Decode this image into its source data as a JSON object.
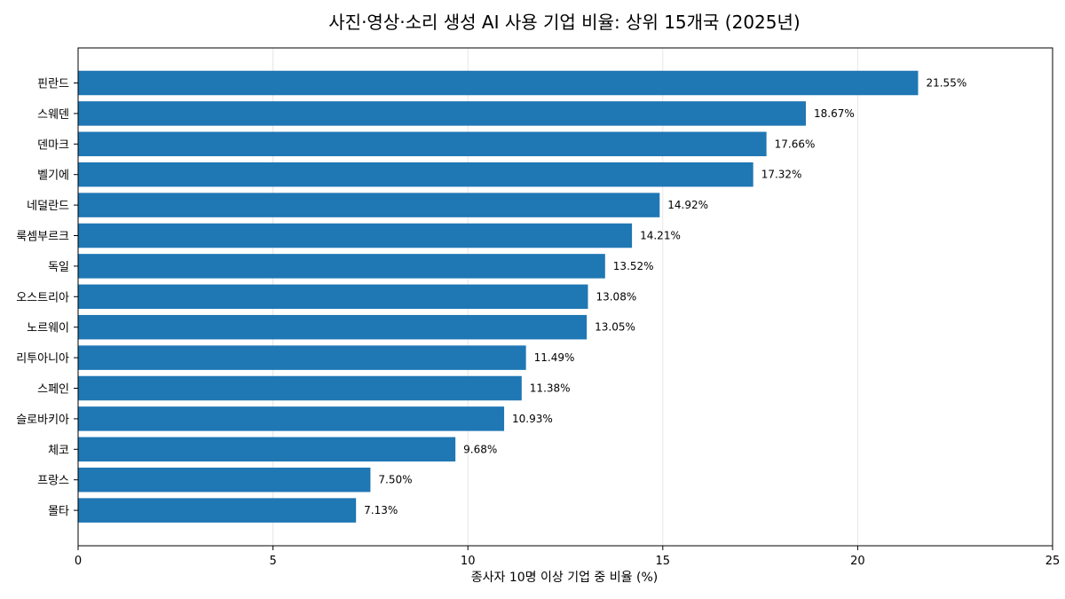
{
  "chart_data": {
    "type": "bar",
    "orientation": "horizontal",
    "title": "사진·영상·소리 생성 AI 사용 기업 비율: 상위 15개국 (2025년)",
    "xlabel": "종사자 10명 이상 기업 중 비율 (%)",
    "ylabel": "",
    "xlim": [
      0,
      25
    ],
    "xticks": [
      0,
      5,
      10,
      15,
      20,
      25
    ],
    "grid": "vertical-light",
    "categories": [
      "핀란드",
      "스웨덴",
      "덴마크",
      "벨기에",
      "네덜란드",
      "룩셈부르크",
      "독일",
      "오스트리아",
      "노르웨이",
      "리투아니아",
      "스페인",
      "슬로바키아",
      "체코",
      "프랑스",
      "몰타"
    ],
    "values": [
      21.55,
      18.67,
      17.66,
      17.32,
      14.92,
      14.21,
      13.52,
      13.08,
      13.05,
      11.49,
      11.38,
      10.93,
      9.68,
      7.5,
      7.13
    ],
    "value_labels": [
      "21.55%",
      "18.67%",
      "17.66%",
      "17.32%",
      "14.92%",
      "14.21%",
      "13.52%",
      "13.08%",
      "13.05%",
      "11.49%",
      "11.38%",
      "10.93%",
      "9.68%",
      "7.50%",
      "7.13%"
    ],
    "bar_color": "#1f77b4"
  }
}
